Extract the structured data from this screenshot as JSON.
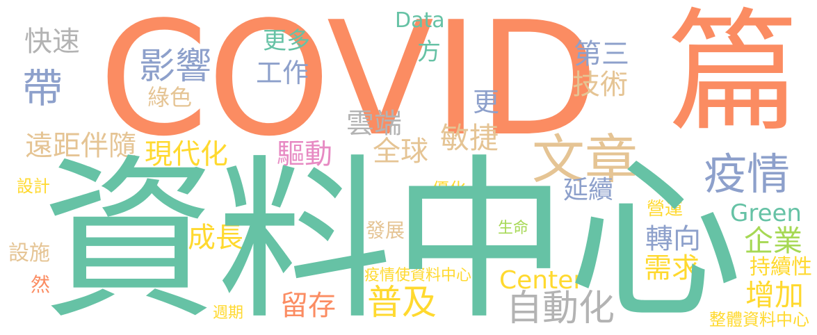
{
  "words": {
    "covid": {
      "text": "COVID",
      "color": "#fb8c62"
    },
    "data_center": {
      "text": "資料中心",
      "color": "#66c2a5"
    },
    "pian": {
      "text": "篇",
      "color": "#fb8c62"
    },
    "wenzhang": {
      "text": "文章",
      "color": "#e5c494"
    },
    "yiqing": {
      "text": "疫情",
      "color": "#8da0cb"
    },
    "yingxiang": {
      "text": "影響",
      "color": "#8da0cb"
    },
    "dai": {
      "text": "帶",
      "color": "#8da0cb"
    },
    "kuaisu": {
      "text": "快速",
      "color": "#b3b3b3"
    },
    "data": {
      "text": "Data",
      "color": "#66c2a5"
    },
    "gengduo": {
      "text": "更多",
      "color": "#66c2a5"
    },
    "gongzuo": {
      "text": "工作",
      "color": "#8da0cb"
    },
    "fang": {
      "text": "方",
      "color": "#66c2a5"
    },
    "disan": {
      "text": "第三",
      "color": "#8da0cb"
    },
    "jishu": {
      "text": "技術",
      "color": "#e5c494"
    },
    "lvse": {
      "text": "綠色",
      "color": "#e5c494"
    },
    "geng": {
      "text": "更",
      "color": "#8da0cb"
    },
    "yunduan": {
      "text": "雲端",
      "color": "#b3b3b3"
    },
    "minjie": {
      "text": "敏捷",
      "color": "#e5c494"
    },
    "yuanju": {
      "text": "遠距伴隨",
      "color": "#e5c494"
    },
    "quanqiu": {
      "text": "全球",
      "color": "#e5c494"
    },
    "xiandaihua": {
      "text": "現代化",
      "color": "#ffd92f"
    },
    "qudong": {
      "text": "驅動",
      "color": "#e78ac3"
    },
    "yanxu": {
      "text": "延續",
      "color": "#8da0cb"
    },
    "youhua": {
      "text": "優化",
      "color": "#ffd92f"
    },
    "sheji": {
      "text": "設計",
      "color": "#ffd92f"
    },
    "yingyun": {
      "text": "營運",
      "color": "#ffd92f"
    },
    "green": {
      "text": "Green",
      "color": "#66c2a5"
    },
    "shengming": {
      "text": "生命",
      "color": "#a6d854"
    },
    "chengzhang": {
      "text": "成長",
      "color": "#ffd92f"
    },
    "fazhan": {
      "text": "發展",
      "color": "#e5c494"
    },
    "zhuanxiang": {
      "text": "轉向",
      "color": "#8da0cb"
    },
    "qiye": {
      "text": "企業",
      "color": "#a6d854"
    },
    "sheshi": {
      "text": "設施",
      "color": "#e5c494"
    },
    "xuqiu": {
      "text": "需求",
      "color": "#ffd92f"
    },
    "chixuxing": {
      "text": "持續性",
      "color": "#ffd92f"
    },
    "yiqing_shi": {
      "text": "疫情使資料中心",
      "color": "#ffd92f"
    },
    "center": {
      "text": "Center",
      "color": "#ffd92f"
    },
    "ran": {
      "text": "然",
      "color": "#fb8c62"
    },
    "puji": {
      "text": "普及",
      "color": "#ffd92f"
    },
    "liucun": {
      "text": "留存",
      "color": "#fb8c62"
    },
    "zidonghua": {
      "text": "自動化",
      "color": "#b3b3b3"
    },
    "zengjia": {
      "text": "增加",
      "color": "#ffd92f"
    },
    "zhouqi": {
      "text": "週期",
      "color": "#ffd92f"
    },
    "zhengti": {
      "text": "整體資料中心",
      "color": "#ffd92f"
    }
  }
}
